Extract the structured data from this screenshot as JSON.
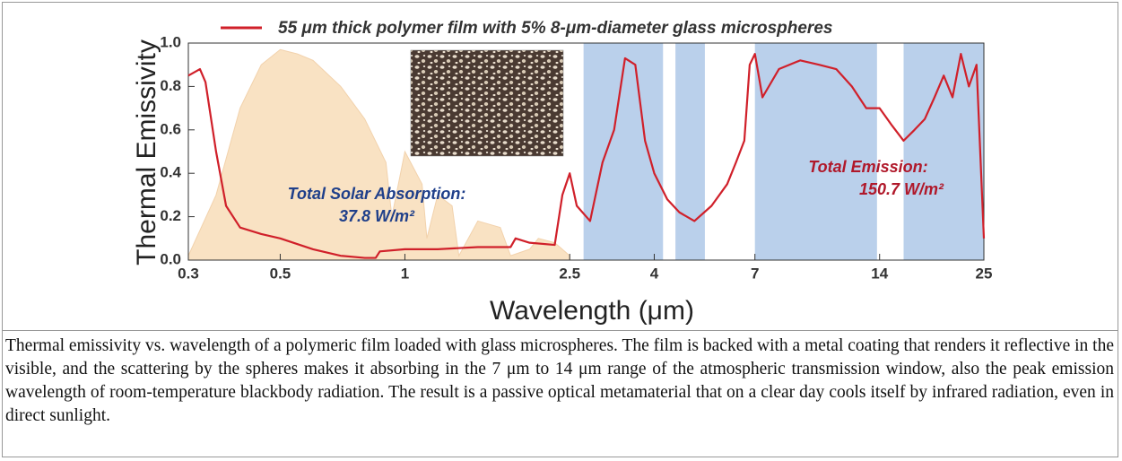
{
  "chart_data": {
    "type": "line",
    "x_label": "Wavelength (μm)",
    "y_label": "Thermal Emissivity",
    "xscale": "log",
    "xlim": [
      0.3,
      25
    ],
    "xticks": [
      0.3,
      0.5,
      1,
      2.5,
      4,
      7,
      14,
      25
    ],
    "ylim": [
      0,
      1
    ],
    "yticks": [
      {
        "value": 0,
        "label": "0.0"
      },
      0.2,
      0.4,
      0.6,
      0.8,
      {
        "value": 1,
        "label": "1.0"
      }
    ],
    "series": [
      {
        "name": "55 μm thick polymer film with 5% 8-μm-diameter glass microspheres",
        "color": "#d0202a",
        "x": [
          0.3,
          0.32,
          0.33,
          0.35,
          0.37,
          0.4,
          0.45,
          0.5,
          0.6,
          0.7,
          0.8,
          0.85,
          0.87,
          1,
          1.2,
          1.5,
          1.8,
          1.85,
          2.0,
          2.3,
          2.4,
          2.5,
          2.6,
          2.8,
          3.0,
          3.2,
          3.4,
          3.6,
          3.8,
          4.0,
          4.3,
          4.6,
          5.0,
          5.5,
          6.0,
          6.3,
          6.6,
          6.8,
          7.0,
          7.3,
          8,
          9,
          10,
          11,
          12,
          13,
          14,
          15,
          16,
          17,
          18,
          19,
          20,
          21,
          22,
          23,
          24,
          25
        ],
        "values": [
          0.85,
          0.88,
          0.82,
          0.5,
          0.25,
          0.15,
          0.12,
          0.1,
          0.05,
          0.02,
          0.01,
          0.01,
          0.04,
          0.05,
          0.05,
          0.06,
          0.06,
          0.1,
          0.08,
          0.07,
          0.3,
          0.4,
          0.25,
          0.18,
          0.45,
          0.6,
          0.93,
          0.9,
          0.55,
          0.4,
          0.28,
          0.22,
          0.18,
          0.25,
          0.35,
          0.45,
          0.55,
          0.9,
          0.95,
          0.75,
          0.88,
          0.92,
          0.9,
          0.88,
          0.8,
          0.7,
          0.7,
          0.62,
          0.55,
          0.6,
          0.65,
          0.75,
          0.85,
          0.75,
          0.95,
          0.8,
          0.9,
          0.1
        ]
      }
    ],
    "solar_spectrum": {
      "color": "#f7d9b0",
      "x": [
        0.3,
        0.35,
        0.4,
        0.45,
        0.5,
        0.55,
        0.6,
        0.7,
        0.8,
        0.9,
        0.93,
        1.0,
        1.1,
        1.13,
        1.2,
        1.3,
        1.35,
        1.5,
        1.7,
        1.8,
        2.0,
        2.1,
        2.3,
        2.5
      ],
      "values": [
        0.02,
        0.3,
        0.7,
        0.9,
        0.97,
        0.95,
        0.92,
        0.8,
        0.65,
        0.45,
        0.2,
        0.5,
        0.35,
        0.1,
        0.3,
        0.25,
        0.02,
        0.18,
        0.15,
        0.02,
        0.05,
        0.1,
        0.08,
        0.02
      ]
    },
    "atmospheric_bands": {
      "color": "#a9c4e6",
      "ranges": [
        [
          2.7,
          4.2
        ],
        [
          4.5,
          5.3
        ],
        [
          7.0,
          13.8
        ],
        [
          16,
          25
        ]
      ]
    },
    "annotations": [
      "Total Solar Absorption:",
      "37.8 W/m²",
      "Total Emission:",
      "150.7 W/m²"
    ]
  },
  "caption": "Thermal emissivity vs. wavelength of a polymeric film loaded with glass microspheres. The film is backed with a metal coating that renders it reflective in the visible, and the scattering by the spheres makes it absorbing in the 7 μm to 14 μm range of the atmospheric transmission window, also the peak emission wavelength of room-temperature blackbody radiation. The result is a passive optical metamaterial that on a clear day cools itself by infrared radiation, even in direct sunlight."
}
